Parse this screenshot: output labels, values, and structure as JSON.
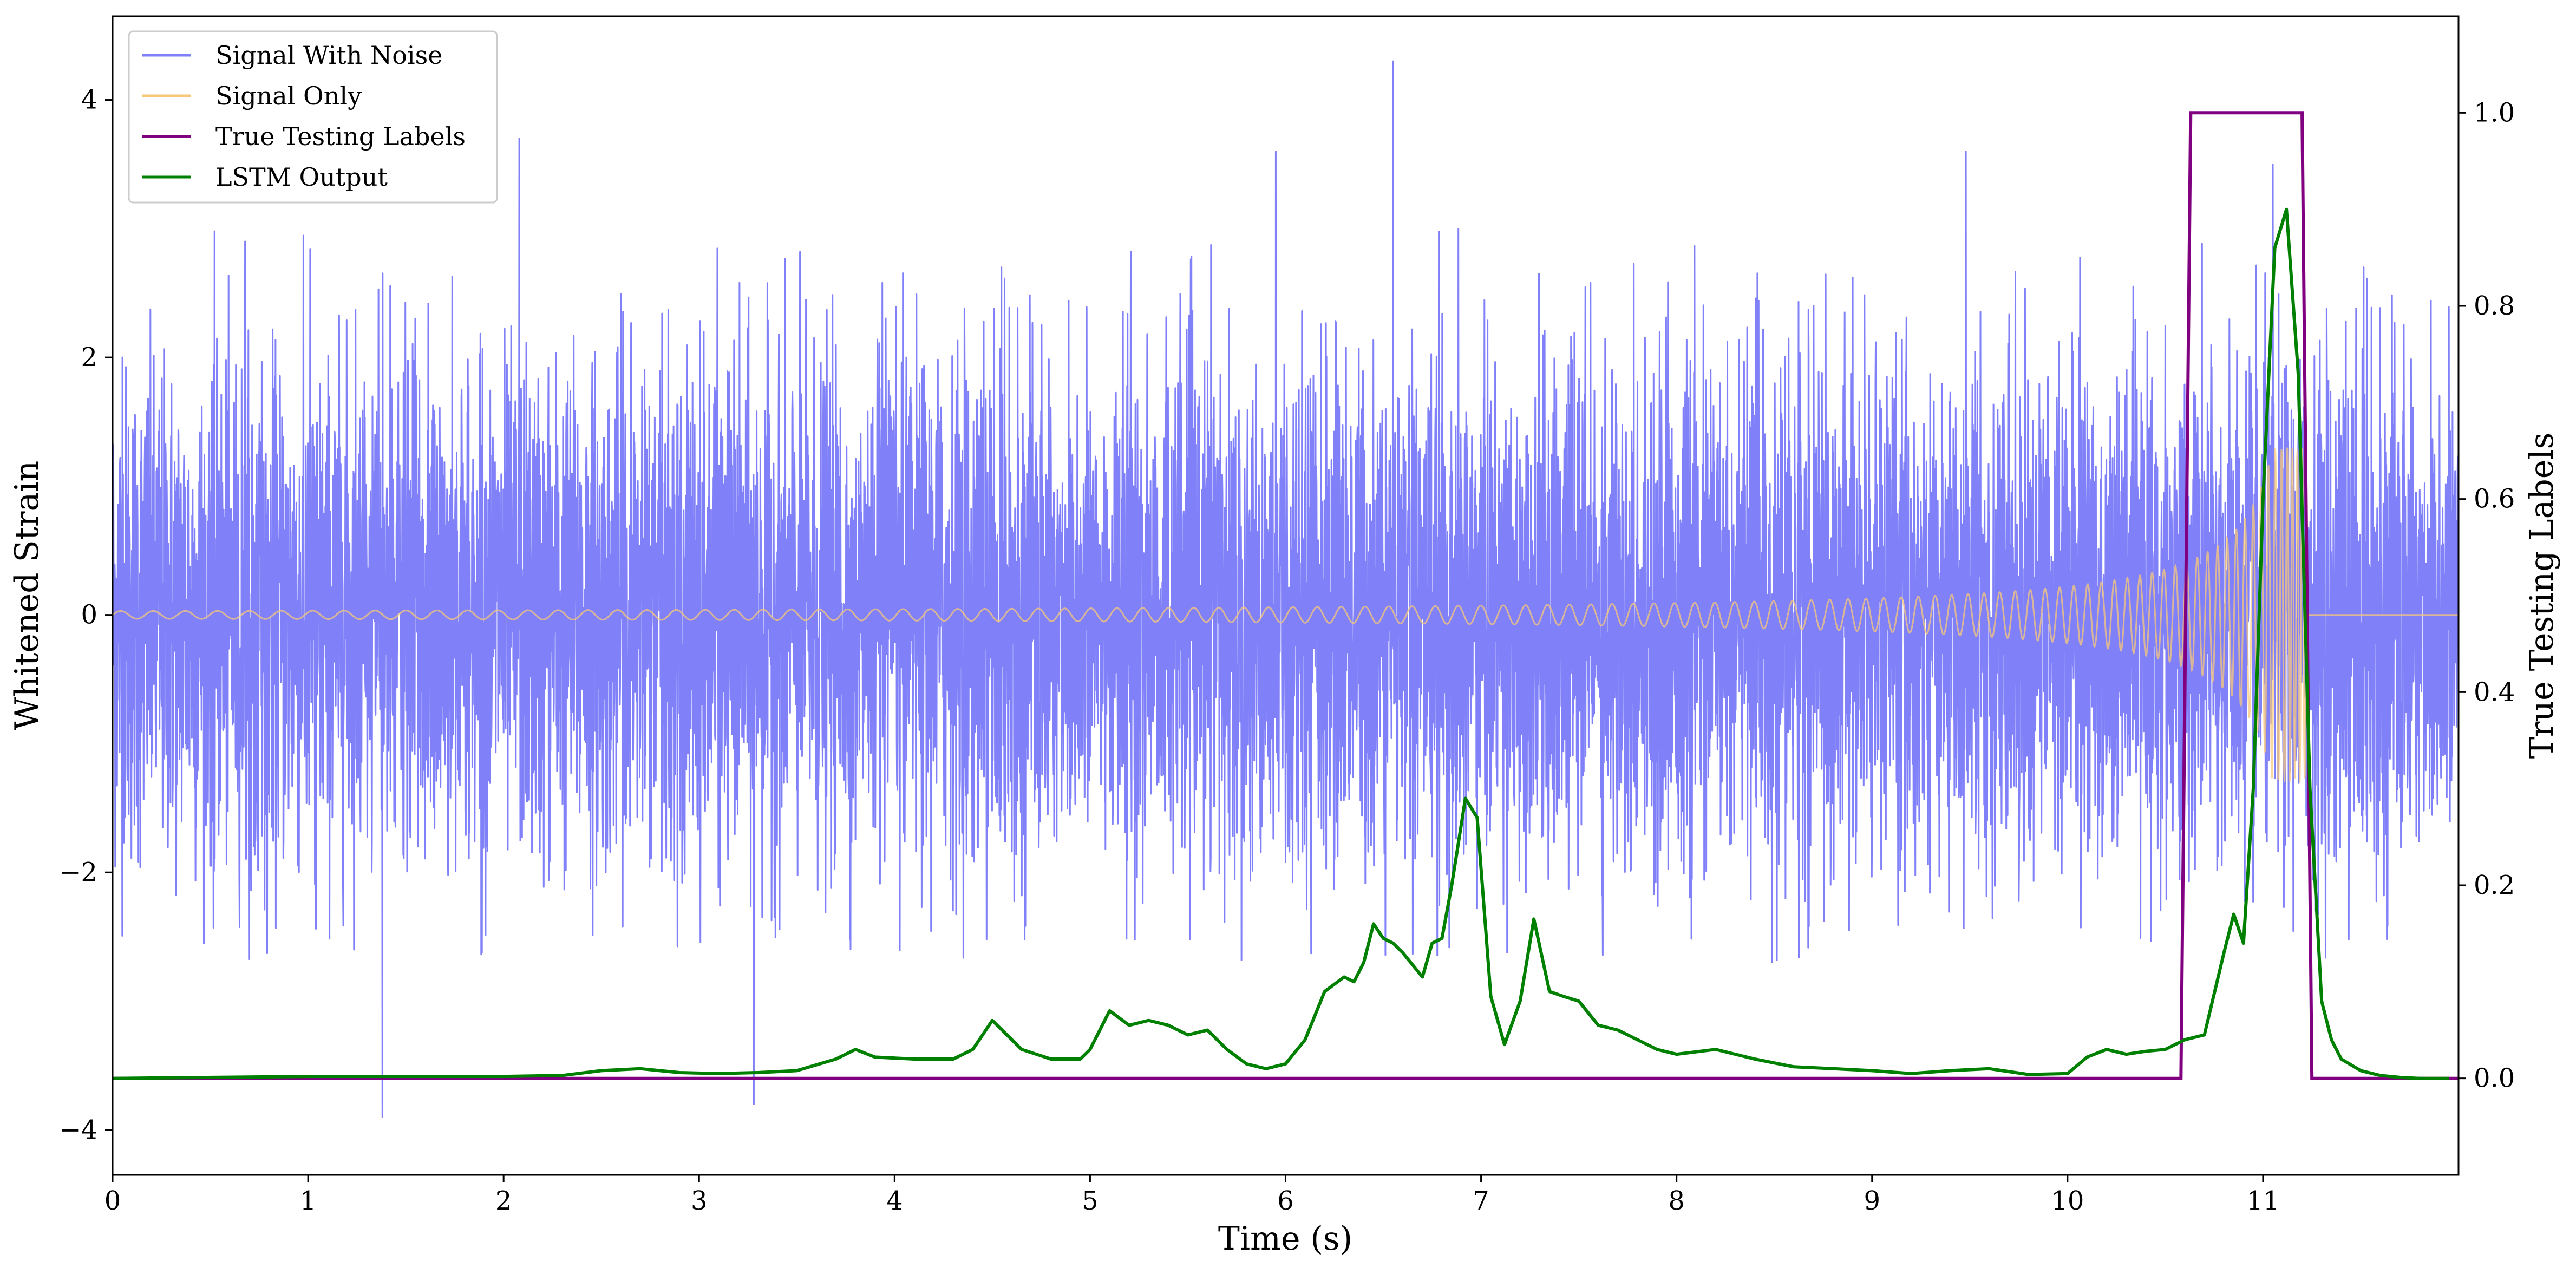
{
  "chart_data": {
    "type": "line",
    "xlabel": "Time (s)",
    "ylabel_left": "Whitened Strain",
    "ylabel_right": "True Testing Labels",
    "xlim": [
      0,
      12
    ],
    "ylim_left": [
      -4.35,
      4.65
    ],
    "ylim_right": [
      -0.1,
      1.1
    ],
    "x_ticks": [
      0,
      1,
      2,
      3,
      4,
      5,
      6,
      7,
      8,
      9,
      10,
      11
    ],
    "y_ticks_left": [
      -4,
      -2,
      0,
      2,
      4
    ],
    "y_ticks_right": [
      0.0,
      0.2,
      0.4,
      0.6,
      0.8,
      1.0
    ],
    "grid": false,
    "legend_position": "upper-left",
    "colors": {
      "noise": "#8080f8",
      "signal": "#f7c87a",
      "labels": "#800080",
      "lstm": "#008000"
    },
    "series": [
      {
        "name": "Signal With Noise",
        "axis": "left",
        "description_range": "noisy whitened strain, amplitude roughly -2.7 to 3.0 with spikes to about 4.3 and -3.9",
        "peaks": [
          {
            "x": 0.05,
            "y": 2.0
          },
          {
            "x": 1.38,
            "y": -3.9
          },
          {
            "x": 2.08,
            "y": 3.7
          },
          {
            "x": 3.28,
            "y": -3.8
          },
          {
            "x": 5.95,
            "y": 3.6
          },
          {
            "x": 6.55,
            "y": 4.3
          },
          {
            "x": 9.48,
            "y": 3.6
          },
          {
            "x": 11.05,
            "y": 3.5
          }
        ]
      },
      {
        "name": "Signal Only",
        "axis": "left",
        "chirp": {
          "start": 0.0,
          "end": 11.22,
          "amp_start": 0.03,
          "amp_end": 1.3,
          "freq_start": 6,
          "freq_end": 40
        }
      },
      {
        "name": "True Testing Labels",
        "axis": "right",
        "x": [
          0,
          10.58,
          10.63,
          11.2,
          11.25,
          12
        ],
        "y": [
          0,
          0,
          1,
          1,
          0,
          0
        ]
      },
      {
        "name": "LSTM Output",
        "axis": "right",
        "x": [
          0,
          1.0,
          2.0,
          2.3,
          2.5,
          2.7,
          2.9,
          3.1,
          3.3,
          3.5,
          3.7,
          3.8,
          3.9,
          4.1,
          4.3,
          4.4,
          4.5,
          4.65,
          4.8,
          4.95,
          5.0,
          5.1,
          5.2,
          5.3,
          5.4,
          5.5,
          5.6,
          5.7,
          5.8,
          5.9,
          6.0,
          6.1,
          6.2,
          6.3,
          6.35,
          6.4,
          6.45,
          6.5,
          6.55,
          6.6,
          6.7,
          6.75,
          6.8,
          6.85,
          6.92,
          6.98,
          7.05,
          7.12,
          7.2,
          7.27,
          7.35,
          7.42,
          7.5,
          7.6,
          7.7,
          7.8,
          7.9,
          8.0,
          8.2,
          8.4,
          8.6,
          8.8,
          9.0,
          9.2,
          9.4,
          9.6,
          9.8,
          10.0,
          10.1,
          10.2,
          10.3,
          10.4,
          10.5,
          10.6,
          10.7,
          10.8,
          10.85,
          10.9,
          10.95,
          11.0,
          11.06,
          11.12,
          11.18,
          11.24,
          11.3,
          11.35,
          11.4,
          11.5,
          11.6,
          11.7,
          11.8,
          11.95
        ],
        "y": [
          0,
          0.002,
          0.002,
          0.003,
          0.008,
          0.01,
          0.006,
          0.005,
          0.006,
          0.008,
          0.02,
          0.03,
          0.022,
          0.02,
          0.02,
          0.03,
          0.06,
          0.03,
          0.02,
          0.02,
          0.03,
          0.07,
          0.055,
          0.06,
          0.055,
          0.045,
          0.05,
          0.03,
          0.015,
          0.01,
          0.015,
          0.04,
          0.09,
          0.105,
          0.1,
          0.12,
          0.16,
          0.145,
          0.14,
          0.13,
          0.105,
          0.14,
          0.145,
          0.2,
          0.29,
          0.27,
          0.085,
          0.035,
          0.08,
          0.165,
          0.09,
          0.085,
          0.08,
          0.055,
          0.05,
          0.04,
          0.03,
          0.025,
          0.03,
          0.02,
          0.012,
          0.01,
          0.008,
          0.005,
          0.008,
          0.01,
          0.004,
          0.005,
          0.022,
          0.03,
          0.025,
          0.028,
          0.03,
          0.04,
          0.045,
          0.13,
          0.17,
          0.14,
          0.3,
          0.6,
          0.86,
          0.9,
          0.73,
          0.3,
          0.08,
          0.04,
          0.02,
          0.008,
          0.003,
          0.001,
          0.0,
          0.0
        ]
      }
    ]
  }
}
